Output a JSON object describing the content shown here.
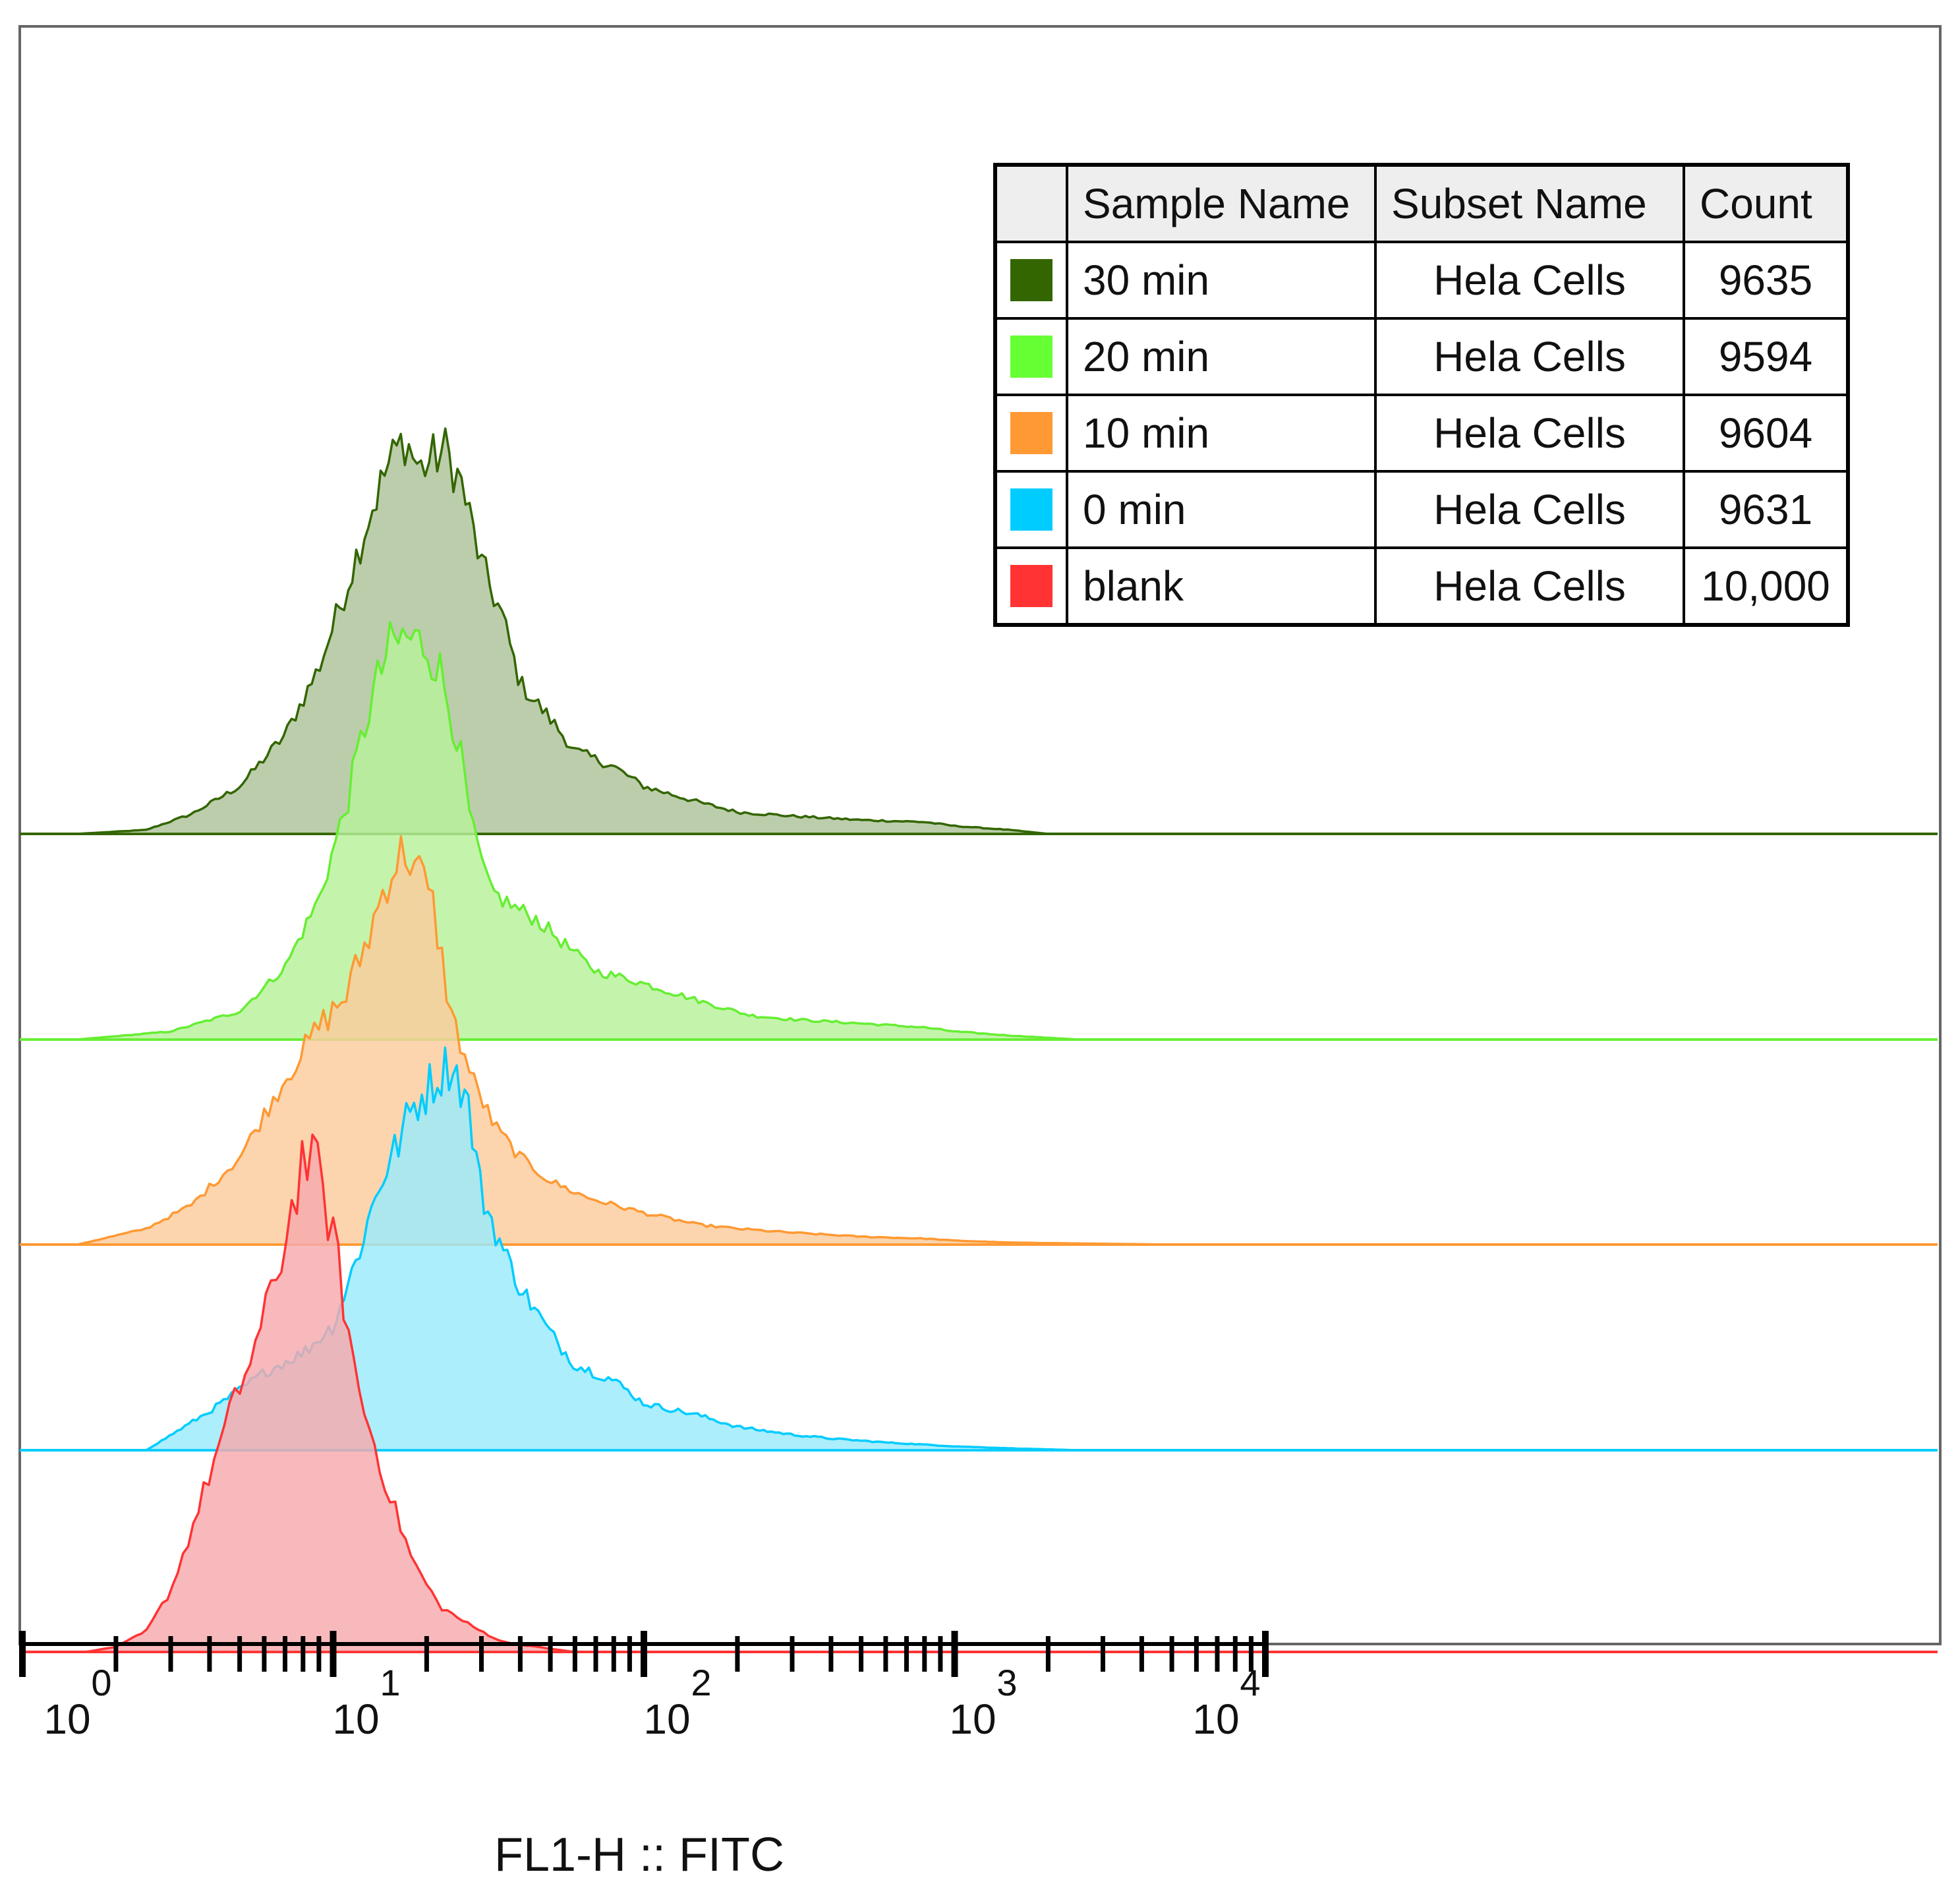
{
  "chart_data": {
    "type": "area",
    "subtype": "offset-histogram-overlay",
    "xlabel": "FL1-H :: FITC",
    "x_scale": "log",
    "xlim": [
      1,
      10000
    ],
    "x_ticks": [
      {
        "base": "10",
        "exp": "0"
      },
      {
        "base": "10",
        "exp": "1"
      },
      {
        "base": "10",
        "exp": "2"
      },
      {
        "base": "10",
        "exp": "3"
      },
      {
        "base": "10",
        "exp": "4"
      }
    ],
    "legend": {
      "position": "top-right",
      "headers": [
        "Sample Name",
        "Subset Name",
        "Count"
      ],
      "rows": [
        {
          "sample": "30 min",
          "subset": "Hela Cells",
          "count": "9635",
          "color": "#336600"
        },
        {
          "sample": "20 min",
          "subset": "Hela Cells",
          "count": "9594",
          "color": "#66ff33"
        },
        {
          "sample": "10 min",
          "subset": "Hela Cells",
          "count": "9604",
          "color": "#ff9933"
        },
        {
          "sample": "0 min",
          "subset": "Hela Cells",
          "count": "9631",
          "color": "#00ccff"
        },
        {
          "sample": "blank",
          "subset": "Hela Cells",
          "count": "10,000",
          "color": "#ff3333"
        }
      ]
    },
    "series": [
      {
        "name": "30 min",
        "color": "#336600",
        "fill": "#adc29a",
        "x": [
          1.5,
          2.5,
          3.5,
          5,
          7,
          9,
          11,
          13,
          15,
          17,
          19,
          21,
          23,
          26,
          30,
          35,
          40,
          50,
          60,
          80,
          100,
          150,
          200,
          300,
          500,
          800,
          1000,
          1500,
          2000
        ],
        "values": [
          0,
          0.01,
          0.05,
          0.12,
          0.25,
          0.42,
          0.62,
          0.8,
          0.93,
          1.0,
          0.92,
          0.95,
          0.97,
          0.88,
          0.68,
          0.55,
          0.38,
          0.29,
          0.21,
          0.17,
          0.12,
          0.08,
          0.055,
          0.045,
          0.035,
          0.03,
          0.02,
          0.01,
          0
        ]
      },
      {
        "name": "20 min",
        "color": "#66ee33",
        "fill": "#b7f29a",
        "x": [
          1.5,
          3,
          5,
          7,
          9,
          11,
          13,
          15,
          17,
          20,
          22,
          25,
          28,
          32,
          38,
          45,
          55,
          70,
          90,
          120,
          160,
          220,
          300,
          500,
          800,
          1000,
          1500,
          2500
        ],
        "values": [
          0,
          0.02,
          0.07,
          0.18,
          0.35,
          0.58,
          0.82,
          0.97,
          1.0,
          0.98,
          0.92,
          0.76,
          0.52,
          0.37,
          0.33,
          0.3,
          0.24,
          0.17,
          0.15,
          0.12,
          0.09,
          0.06,
          0.05,
          0.04,
          0.03,
          0.02,
          0.01,
          0
        ]
      },
      {
        "name": "10 min",
        "color": "#ff9933",
        "fill": "#fbcc9e",
        "x": [
          1.5,
          2.5,
          3.5,
          5,
          7,
          9,
          11,
          13,
          15,
          17,
          19,
          21,
          24,
          28,
          33,
          40,
          50,
          65,
          80,
          100,
          150,
          200,
          300,
          500,
          800,
          1000,
          1500,
          3000,
          5000
        ],
        "values": [
          0,
          0.04,
          0.1,
          0.22,
          0.42,
          0.55,
          0.63,
          0.78,
          0.93,
          1.0,
          0.94,
          0.85,
          0.58,
          0.42,
          0.3,
          0.22,
          0.16,
          0.12,
          0.1,
          0.08,
          0.05,
          0.04,
          0.03,
          0.02,
          0.015,
          0.01,
          0.005,
          0.002,
          0
        ]
      },
      {
        "name": "0 min",
        "color": "#00ccff",
        "fill": "#9aeafb",
        "x": [
          2.5,
          4,
          6,
          8,
          10,
          12,
          14,
          16,
          18,
          21,
          24,
          27,
          30,
          35,
          40,
          50,
          60,
          80,
          100,
          150,
          200,
          300,
          400,
          600,
          1000,
          1500,
          2500
        ],
        "values": [
          0,
          0.1,
          0.2,
          0.25,
          0.32,
          0.5,
          0.68,
          0.78,
          0.88,
          0.95,
          1.0,
          0.9,
          0.66,
          0.52,
          0.42,
          0.3,
          0.22,
          0.18,
          0.12,
          0.09,
          0.06,
          0.04,
          0.03,
          0.02,
          0.01,
          0.005,
          0
        ]
      },
      {
        "name": "blank",
        "color": "#ff3333",
        "fill": "#f7a9ad",
        "x": [
          1,
          1.3,
          1.6,
          2,
          2.5,
          3,
          3.5,
          4,
          5,
          6,
          7,
          8,
          9,
          10,
          12,
          15,
          18,
          22,
          28,
          35,
          45,
          60,
          100,
          10000
        ],
        "values": [
          0,
          0,
          0,
          0.01,
          0.04,
          0.12,
          0.24,
          0.35,
          0.52,
          0.65,
          0.81,
          0.98,
          0.94,
          0.82,
          0.52,
          0.32,
          0.18,
          0.09,
          0.05,
          0.02,
          0.01,
          0,
          0,
          0
        ]
      }
    ]
  }
}
